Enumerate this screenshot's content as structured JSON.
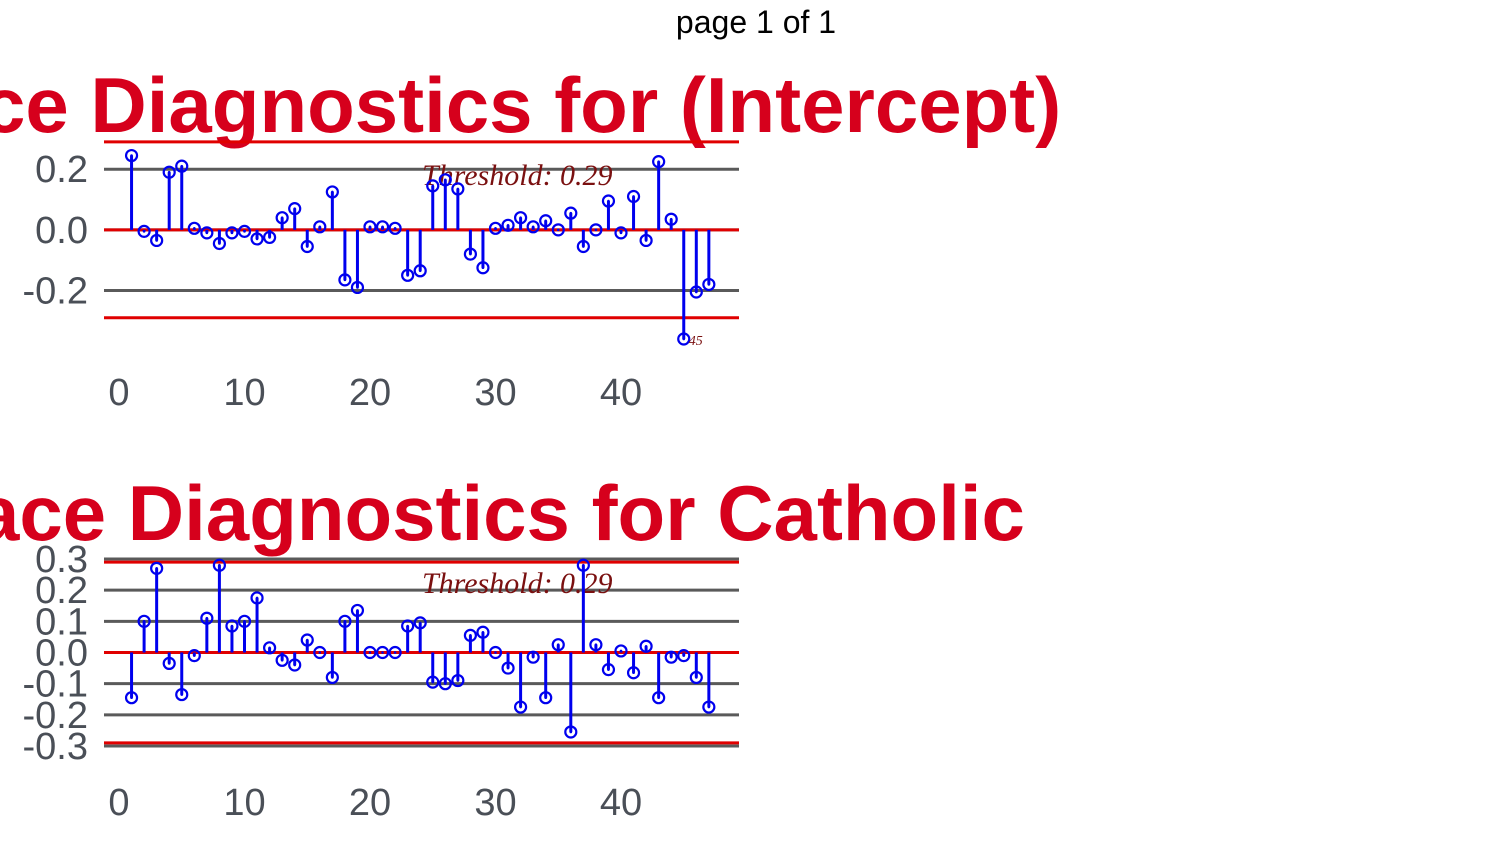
{
  "page_label": "page 1 of 1",
  "chart_data": [
    {
      "type": "scatter",
      "title": "ce Diagnostics for (Intercept)",
      "threshold_label": "Threshold: 0.29",
      "threshold": 0.29,
      "ylim": [
        -0.36,
        0.26
      ],
      "xlim": [
        0,
        49
      ],
      "yticks": [
        0.2,
        0.0,
        -0.2
      ],
      "ytick_labels": [
        "0.2",
        "0.0",
        "-0.2"
      ],
      "xticks": [
        0,
        10,
        20,
        30,
        40
      ],
      "xtick_labels": [
        "0",
        "10",
        "20",
        "30",
        "40"
      ],
      "annotations": [
        {
          "x": 45,
          "label": "45"
        }
      ],
      "x": [
        1,
        2,
        3,
        4,
        5,
        6,
        7,
        8,
        9,
        10,
        11,
        12,
        13,
        14,
        15,
        16,
        17,
        18,
        19,
        20,
        21,
        22,
        23,
        24,
        25,
        26,
        27,
        28,
        29,
        30,
        31,
        32,
        33,
        34,
        35,
        36,
        37,
        38,
        39,
        40,
        41,
        42,
        43,
        44,
        45,
        46,
        47
      ],
      "values": [
        0.245,
        -0.005,
        -0.035,
        0.19,
        0.21,
        0.005,
        -0.01,
        -0.045,
        -0.01,
        -0.005,
        -0.03,
        -0.025,
        0.04,
        0.07,
        -0.055,
        0.01,
        0.125,
        -0.165,
        -0.19,
        0.01,
        0.01,
        0.005,
        -0.15,
        -0.135,
        0.145,
        0.165,
        0.135,
        -0.08,
        -0.125,
        0.005,
        0.015,
        0.04,
        0.01,
        0.03,
        0.0,
        0.055,
        -0.055,
        0.0,
        0.095,
        -0.01,
        0.11,
        -0.035,
        0.225,
        0.035,
        -0.36,
        -0.205,
        -0.18
      ]
    },
    {
      "type": "scatter",
      "title": "ace Diagnostics for Catholic",
      "threshold_label": "Threshold: 0.29",
      "threshold": 0.29,
      "ylim": [
        -0.3,
        0.3
      ],
      "xlim": [
        0,
        49
      ],
      "yticks": [
        0.3,
        0.2,
        0.1,
        0.0,
        -0.1,
        -0.2,
        -0.3
      ],
      "ytick_labels": [
        "0.3",
        "0.2",
        "0.1",
        "0.0",
        "-0.1",
        "-0.2",
        "-0.3"
      ],
      "xticks": [
        0,
        10,
        20,
        30,
        40
      ],
      "xtick_labels": [
        "0",
        "10",
        "20",
        "30",
        "40"
      ],
      "annotations": [],
      "x": [
        1,
        2,
        3,
        4,
        5,
        6,
        7,
        8,
        9,
        10,
        11,
        12,
        13,
        14,
        15,
        16,
        17,
        18,
        19,
        20,
        21,
        22,
        23,
        24,
        25,
        26,
        27,
        28,
        29,
        30,
        31,
        32,
        33,
        34,
        35,
        36,
        37,
        38,
        39,
        40,
        41,
        42,
        43,
        44,
        45,
        46,
        47
      ],
      "values": [
        -0.145,
        0.1,
        0.27,
        -0.035,
        -0.135,
        -0.01,
        0.11,
        0.28,
        0.085,
        0.1,
        0.175,
        0.015,
        -0.025,
        -0.04,
        0.04,
        0.0,
        -0.08,
        0.1,
        0.135,
        0.0,
        0.0,
        0.0,
        0.085,
        0.095,
        -0.095,
        -0.1,
        -0.09,
        0.055,
        0.065,
        0.0,
        -0.05,
        -0.175,
        -0.015,
        -0.145,
        0.025,
        -0.255,
        0.28,
        0.025,
        -0.055,
        0.005,
        -0.065,
        0.02,
        -0.145,
        -0.015,
        -0.01,
        -0.08,
        -0.175
      ]
    }
  ]
}
